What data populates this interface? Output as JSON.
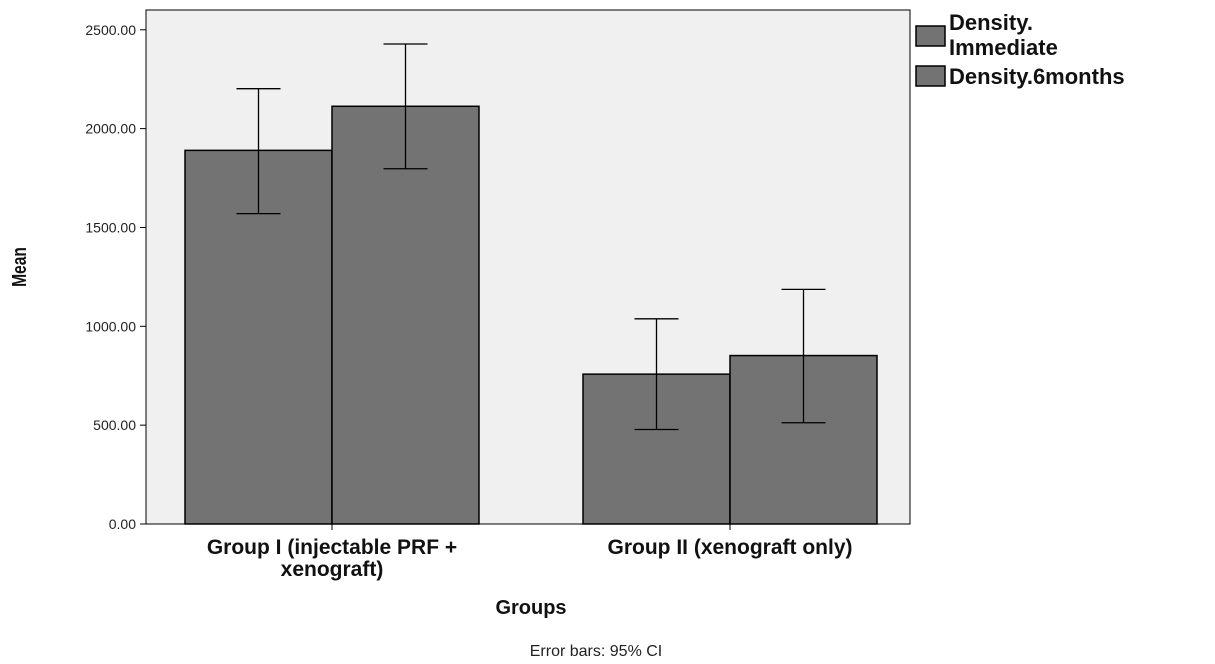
{
  "chart_data": {
    "type": "bar",
    "categories": [
      [
        "Group I (injectable PRF +",
        "xenograft)"
      ],
      [
        "Group II (xenograft only)"
      ]
    ],
    "series": [
      {
        "name": [
          "Density.",
          "Immediate"
        ],
        "values": [
          1890,
          758
        ],
        "ci_low": [
          1570,
          478
        ],
        "ci_high": [
          2202,
          1038
        ]
      },
      {
        "name": [
          "Density.6months"
        ],
        "values": [
          2113,
          852
        ],
        "ci_low": [
          1797,
          512
        ],
        "ci_high": [
          2428,
          1187
        ]
      }
    ],
    "xlabel": "Groups",
    "ylabel": "Mean",
    "ylim": [
      0,
      2600
    ],
    "yticks": [
      0,
      500,
      1000,
      1500,
      2000,
      2500
    ],
    "ytick_labels": [
      "0.00",
      "500.00",
      "1000.00",
      "1500.00",
      "2000.00",
      "2500.00"
    ],
    "footnote": "Error bars: 95% CI",
    "legend_position": "top-right outside plot",
    "colors": {
      "bar": "#737373",
      "bar_stroke": "#000000",
      "plot_bg": "#f0f0f0"
    },
    "grid": false
  }
}
